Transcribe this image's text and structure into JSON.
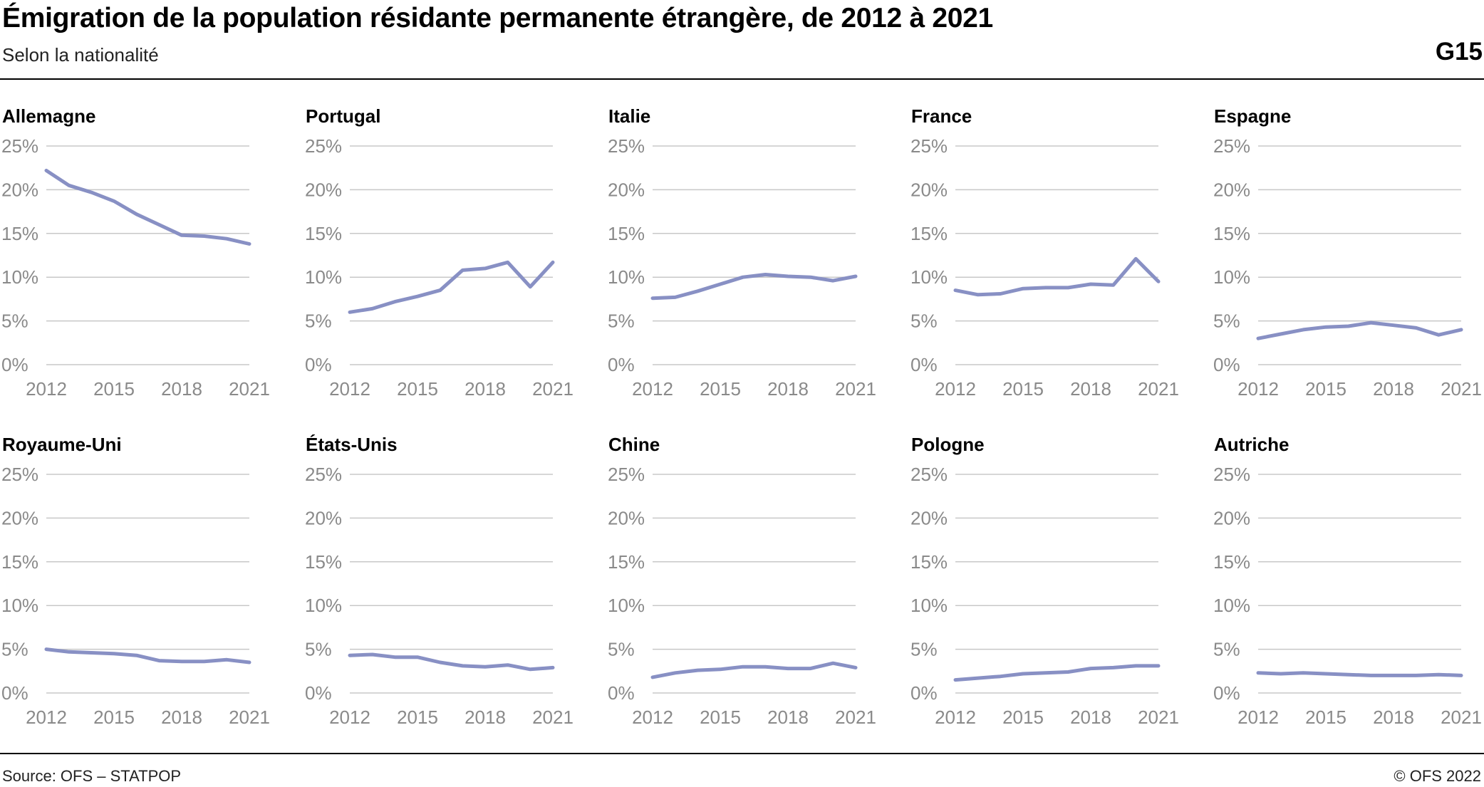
{
  "header": {
    "title": "Émigration de la population résidante permanente étrangère, de 2012 à 2021",
    "subtitle": "Selon la nationalité",
    "code": "G15"
  },
  "footer": {
    "source": "Source: OFS – STATPOP",
    "copyright": "© OFS 2022"
  },
  "colors": {
    "series": "#8890c4",
    "grid": "#c8c8c8",
    "tick": "#8a8a8a"
  },
  "chart_data": [
    {
      "type": "line",
      "title": "Allemagne",
      "x": [
        2012,
        2013,
        2014,
        2015,
        2016,
        2017,
        2018,
        2019,
        2020,
        2021
      ],
      "xticks": [
        "2012",
        "2015",
        "2018",
        "2021"
      ],
      "yticks": [
        "0%",
        "5%",
        "10%",
        "15%",
        "20%",
        "25%"
      ],
      "ylim": [
        0,
        25
      ],
      "grid": true,
      "series": [
        {
          "values": [
            22.2,
            20.5,
            19.7,
            18.7,
            17.2,
            16.0,
            14.8,
            14.7,
            14.4,
            13.8
          ]
        }
      ]
    },
    {
      "type": "line",
      "title": "Portugal",
      "x": [
        2012,
        2013,
        2014,
        2015,
        2016,
        2017,
        2018,
        2019,
        2020,
        2021
      ],
      "xticks": [
        "2012",
        "2015",
        "2018",
        "2021"
      ],
      "yticks": [
        "0%",
        "5%",
        "10%",
        "15%",
        "20%",
        "25%"
      ],
      "ylim": [
        0,
        25
      ],
      "grid": true,
      "series": [
        {
          "values": [
            6.0,
            6.4,
            7.2,
            7.8,
            8.5,
            10.8,
            11.0,
            11.7,
            8.9,
            11.7
          ]
        }
      ]
    },
    {
      "type": "line",
      "title": "Italie",
      "x": [
        2012,
        2013,
        2014,
        2015,
        2016,
        2017,
        2018,
        2019,
        2020,
        2021
      ],
      "xticks": [
        "2012",
        "2015",
        "2018",
        "2021"
      ],
      "yticks": [
        "0%",
        "5%",
        "10%",
        "15%",
        "20%",
        "25%"
      ],
      "ylim": [
        0,
        25
      ],
      "grid": true,
      "series": [
        {
          "values": [
            7.6,
            7.7,
            8.4,
            9.2,
            10.0,
            10.3,
            10.1,
            10.0,
            9.6,
            10.1
          ]
        }
      ]
    },
    {
      "type": "line",
      "title": "France",
      "x": [
        2012,
        2013,
        2014,
        2015,
        2016,
        2017,
        2018,
        2019,
        2020,
        2021
      ],
      "xticks": [
        "2012",
        "2015",
        "2018",
        "2021"
      ],
      "yticks": [
        "0%",
        "5%",
        "10%",
        "15%",
        "20%",
        "25%"
      ],
      "ylim": [
        0,
        25
      ],
      "grid": true,
      "series": [
        {
          "values": [
            8.5,
            8.0,
            8.1,
            8.7,
            8.8,
            8.8,
            9.2,
            9.1,
            12.1,
            9.5
          ]
        }
      ]
    },
    {
      "type": "line",
      "title": "Espagne",
      "x": [
        2012,
        2013,
        2014,
        2015,
        2016,
        2017,
        2018,
        2019,
        2020,
        2021
      ],
      "xticks": [
        "2012",
        "2015",
        "2018",
        "2021"
      ],
      "yticks": [
        "0%",
        "5%",
        "10%",
        "15%",
        "20%",
        "25%"
      ],
      "ylim": [
        0,
        25
      ],
      "grid": true,
      "series": [
        {
          "values": [
            3.0,
            3.5,
            4.0,
            4.3,
            4.4,
            4.8,
            4.5,
            4.2,
            3.4,
            4.0
          ]
        }
      ]
    },
    {
      "type": "line",
      "title": "Royaume-Uni",
      "x": [
        2012,
        2013,
        2014,
        2015,
        2016,
        2017,
        2018,
        2019,
        2020,
        2021
      ],
      "xticks": [
        "2012",
        "2015",
        "2018",
        "2021"
      ],
      "yticks": [
        "0%",
        "5%",
        "10%",
        "15%",
        "20%",
        "25%"
      ],
      "ylim": [
        0,
        25
      ],
      "grid": true,
      "series": [
        {
          "values": [
            5.0,
            4.7,
            4.6,
            4.5,
            4.3,
            3.7,
            3.6,
            3.6,
            3.8,
            3.5
          ]
        }
      ]
    },
    {
      "type": "line",
      "title": "États-Unis",
      "x": [
        2012,
        2013,
        2014,
        2015,
        2016,
        2017,
        2018,
        2019,
        2020,
        2021
      ],
      "xticks": [
        "2012",
        "2015",
        "2018",
        "2021"
      ],
      "yticks": [
        "0%",
        "5%",
        "10%",
        "15%",
        "20%",
        "25%"
      ],
      "ylim": [
        0,
        25
      ],
      "grid": true,
      "series": [
        {
          "values": [
            4.3,
            4.4,
            4.1,
            4.1,
            3.5,
            3.1,
            3.0,
            3.2,
            2.7,
            2.9
          ]
        }
      ]
    },
    {
      "type": "line",
      "title": "Chine",
      "x": [
        2012,
        2013,
        2014,
        2015,
        2016,
        2017,
        2018,
        2019,
        2020,
        2021
      ],
      "xticks": [
        "2012",
        "2015",
        "2018",
        "2021"
      ],
      "yticks": [
        "0%",
        "5%",
        "10%",
        "15%",
        "20%",
        "25%"
      ],
      "ylim": [
        0,
        25
      ],
      "grid": true,
      "series": [
        {
          "values": [
            1.8,
            2.3,
            2.6,
            2.7,
            3.0,
            3.0,
            2.8,
            2.8,
            3.4,
            2.9
          ]
        }
      ]
    },
    {
      "type": "line",
      "title": "Pologne",
      "x": [
        2012,
        2013,
        2014,
        2015,
        2016,
        2017,
        2018,
        2019,
        2020,
        2021
      ],
      "xticks": [
        "2012",
        "2015",
        "2018",
        "2021"
      ],
      "yticks": [
        "0%",
        "5%",
        "10%",
        "15%",
        "20%",
        "25%"
      ],
      "ylim": [
        0,
        25
      ],
      "grid": true,
      "series": [
        {
          "values": [
            1.5,
            1.7,
            1.9,
            2.2,
            2.3,
            2.4,
            2.8,
            2.9,
            3.1,
            3.1
          ]
        }
      ]
    },
    {
      "type": "line",
      "title": "Autriche",
      "x": [
        2012,
        2013,
        2014,
        2015,
        2016,
        2017,
        2018,
        2019,
        2020,
        2021
      ],
      "xticks": [
        "2012",
        "2015",
        "2018",
        "2021"
      ],
      "yticks": [
        "0%",
        "5%",
        "10%",
        "15%",
        "20%",
        "25%"
      ],
      "ylim": [
        0,
        25
      ],
      "grid": true,
      "series": [
        {
          "values": [
            2.3,
            2.2,
            2.3,
            2.2,
            2.1,
            2.0,
            2.0,
            2.0,
            2.1,
            2.0
          ]
        }
      ]
    }
  ]
}
